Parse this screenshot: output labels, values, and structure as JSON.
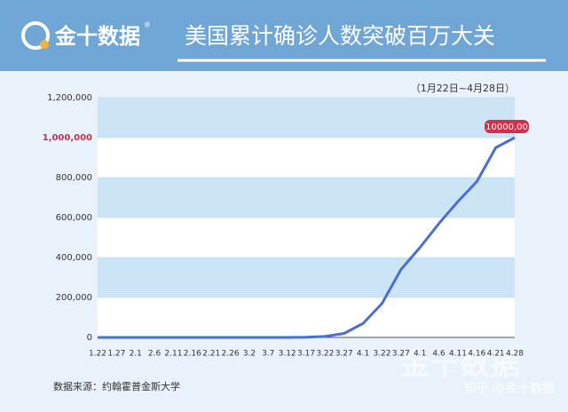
{
  "header": {
    "brand": "金十数据",
    "reg": "®",
    "title": "美国累计确诊人数突破百万大关"
  },
  "chart_data": {
    "type": "line",
    "subtitle": "（1月22日~4月28日）",
    "categories": [
      "1.22",
      "1.27",
      "2.1",
      "2.6",
      "2.11",
      "2.16",
      "2.21",
      "2.26",
      "3.2",
      "3.7",
      "3.12",
      "3.17",
      "3.22",
      "3.27",
      "4.1",
      "3.22",
      "3.27",
      "4.1",
      "4.6",
      "4.11",
      "4.16",
      "4.21",
      "4.28"
    ],
    "series": [
      {
        "color": "#4a6fd4",
        "values": [
          0,
          0,
          0,
          0,
          0,
          0,
          0,
          0,
          0,
          0,
          0,
          1000,
          5000,
          20000,
          70000,
          170000,
          340000,
          450000,
          570000,
          680000,
          780000,
          950000,
          1000000
        ]
      }
    ],
    "ylim": [
      0,
      1200000
    ],
    "yticks": [
      0,
      {
        "value": 200000,
        "label": "200,000"
      },
      {
        "value": 400000,
        "label": "400,000"
      },
      {
        "value": 600000,
        "label": "600,000"
      },
      {
        "value": 800000,
        "label": "800,000"
      },
      {
        "value": 1000000,
        "label": "1,000,000"
      },
      {
        "value": 1200000,
        "label": "1,200,000"
      }
    ],
    "annotation": "10000,00",
    "source": "数据来源：约翰霍普金斯大学"
  },
  "watermark": {
    "logo": "金十数据",
    "text": "知乎 @金十数据"
  }
}
